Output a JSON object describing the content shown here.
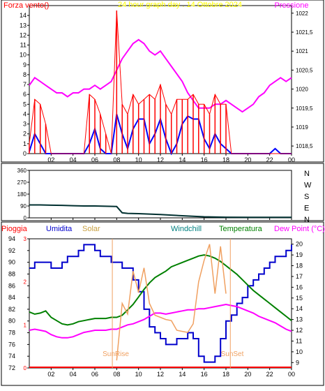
{
  "header": {
    "left_label": "Forza vento()",
    "title": "24 hour graph day . 14 Ottobre 2024",
    "right_label": "Pressione"
  },
  "colors": {
    "wind": "#ff0000",
    "pressure": "#ff00ff",
    "gust_line": "#0000ff",
    "direction": "#003030",
    "rain": "#ff0000",
    "humidity": "#0000cc",
    "solar": "#f0a060",
    "windchill": "#008080",
    "temperature": "#008000",
    "dewpoint": "#ff00ff",
    "axis": "#008080",
    "title": "#ffff00"
  },
  "x_ticks": [
    "02",
    "04",
    "06",
    "08",
    "10",
    "12",
    "14",
    "16",
    "18",
    "20",
    "22",
    "00"
  ],
  "chart_data": [
    {
      "type": "line",
      "title": "24 hour graph day . 14 Ottobre 2024",
      "y_left_label": "Forza vento()",
      "y_right_label": "Pressione",
      "ylim_left": [
        0,
        15
      ],
      "ylim_right": [
        1018.3,
        1022.2
      ],
      "y_left_ticks": [
        "0",
        "1",
        "2",
        "3",
        "4",
        "5",
        "6",
        "7",
        "8",
        "9",
        "10",
        "11",
        "12",
        "13",
        "14"
      ],
      "y_right_ticks": [
        "1018,5",
        "1019",
        "1019,5",
        "1020",
        "1020,5",
        "1021",
        "1021,5",
        "1022"
      ],
      "x": [
        0,
        0.5,
        1,
        1.5,
        2,
        2.5,
        3,
        3.5,
        4,
        4.5,
        5,
        5.5,
        6,
        6.5,
        7,
        7.5,
        8,
        8.5,
        9,
        9.5,
        10,
        10.5,
        11,
        11.5,
        12,
        12.5,
        13,
        13.5,
        14,
        14.5,
        15,
        15.5,
        16,
        16.5,
        17,
        17.5,
        18,
        18.5,
        19,
        19.5,
        20,
        20.5,
        21,
        21.5,
        22,
        22.5,
        23,
        23.5,
        24
      ],
      "series": [
        {
          "name": "Pressione",
          "axis": "right",
          "values": [
            1020.1,
            1020.3,
            1020.2,
            1020.1,
            1020.0,
            1019.9,
            1019.9,
            1019.8,
            1019.9,
            1019.9,
            1020.0,
            1020.0,
            1020.1,
            1020.0,
            1020.1,
            1020.2,
            1020.5,
            1020.8,
            1021.0,
            1021.2,
            1021.3,
            1021.2,
            1021.0,
            1020.9,
            1021.0,
            1020.8,
            1020.6,
            1020.4,
            1020.2,
            1019.9,
            1019.7,
            1019.5,
            1019.5,
            1019.5,
            1019.6,
            1019.6,
            1019.7,
            1019.6,
            1019.5,
            1019.4,
            1019.5,
            1019.6,
            1019.8,
            1019.9,
            1020.1,
            1020.2,
            1020.3,
            1020.2,
            1020.3
          ]
        },
        {
          "name": "Raffica",
          "axis": "left",
          "values": [
            0.2,
            2,
            1,
            0,
            0,
            0,
            0,
            0,
            0,
            0,
            0,
            1,
            2.5,
            0.5,
            0,
            0,
            4,
            2,
            0.5,
            2.5,
            3.5,
            3.5,
            1,
            2,
            3.5,
            1.5,
            0,
            1,
            3,
            3.8,
            3.5,
            3.5,
            1.5,
            0.5,
            2,
            1,
            0.5,
            0,
            0,
            0,
            0,
            0,
            0,
            0,
            0,
            0.5,
            0,
            0,
            0
          ]
        },
        {
          "name": "Forza vento",
          "axis": "left",
          "values": [
            1,
            5.5,
            5,
            3,
            0,
            0,
            0,
            0,
            0,
            0,
            0,
            6,
            5.5,
            4,
            2,
            0,
            14.5,
            5,
            4,
            6,
            5,
            5.5,
            6,
            5.5,
            7,
            5,
            4,
            5.5,
            5.5,
            5.5,
            6,
            5,
            5,
            4,
            6,
            5,
            5,
            0,
            0,
            0,
            0,
            0,
            0,
            0,
            0,
            0,
            0,
            0,
            0
          ]
        }
      ]
    },
    {
      "type": "line",
      "title": "",
      "y_right_ticks": [
        "N",
        "W",
        "S",
        "E",
        "N"
      ],
      "ylim": [
        0,
        360
      ],
      "y_left_ticks": [
        "360",
        "270",
        "180",
        "90",
        "0"
      ],
      "x": [
        0,
        1,
        2,
        3,
        4,
        5,
        6,
        7,
        8,
        8.5,
        9,
        10,
        12,
        14,
        16,
        18,
        20,
        22,
        24
      ],
      "series": [
        {
          "name": "Direzione",
          "values": [
            98,
            98,
            96,
            95,
            92,
            90,
            90,
            88,
            86,
            38,
            34,
            32,
            25,
            16,
            8,
            5,
            4,
            4,
            4
          ]
        }
      ]
    },
    {
      "type": "line",
      "title": "",
      "legend": [
        "Pioggia",
        "Umidita",
        "Solar",
        "Windchill",
        "Temperatura",
        "Dew Point (°C)"
      ],
      "y_left_ticks": [
        "94",
        "92",
        "90",
        "88",
        "86",
        "84",
        "82",
        "80",
        "78",
        "76",
        "74",
        "72"
      ],
      "ylim_left": [
        72,
        94
      ],
      "rain_axis_ticks": [
        "3",
        "2",
        "1",
        "0"
      ],
      "y_right_ticks": [
        "20",
        "19",
        "18",
        "17",
        "16",
        "15",
        "14",
        "13",
        "12",
        "11",
        "10",
        "9"
      ],
      "ylim_right": [
        8.5,
        20.5
      ],
      "annotations": [
        "SunRise",
        "SunSet"
      ],
      "x": [
        0,
        0.5,
        1,
        1.5,
        2,
        2.5,
        3,
        3.5,
        4,
        4.5,
        5,
        5.5,
        6,
        6.5,
        7,
        7.5,
        8,
        8.5,
        9,
        9.5,
        10,
        10.5,
        11,
        11.5,
        12,
        12.5,
        13,
        13.5,
        14,
        14.5,
        15,
        15.5,
        16,
        16.5,
        17,
        17.5,
        18,
        18.5,
        19,
        19.5,
        20,
        20.5,
        21,
        21.5,
        22,
        22.5,
        23,
        23.5,
        24
      ],
      "series": [
        {
          "name": "Umidita",
          "axis": "left",
          "values": [
            89,
            90,
            90,
            90,
            89,
            89,
            90,
            91,
            91,
            92,
            93,
            93,
            92,
            91,
            91,
            90,
            90,
            89,
            89,
            87,
            85,
            82,
            79,
            78,
            77,
            76,
            76,
            77,
            77,
            78,
            77,
            74,
            73,
            73,
            74,
            77,
            80,
            81,
            83,
            84,
            86,
            87,
            88,
            89,
            90,
            91,
            91,
            92,
            93
          ]
        },
        {
          "name": "Temperatura",
          "axis": "right",
          "values": [
            13.7,
            13.5,
            13.6,
            13.8,
            13.2,
            12.9,
            12.6,
            12.5,
            12.6,
            12.8,
            12.9,
            13.0,
            13.1,
            13.1,
            13.1,
            13.2,
            13.2,
            13.4,
            13.9,
            14.4,
            15.1,
            15.8,
            16.4,
            16.9,
            17.2,
            17.5,
            17.9,
            18.1,
            18.3,
            18.5,
            18.7,
            18.9,
            19.0,
            18.9,
            18.7,
            18.4,
            18.0,
            17.6,
            17.2,
            16.7,
            16.2,
            15.7,
            15.3,
            14.9,
            14.5,
            14.1,
            13.7,
            13.3,
            12.9
          ]
        },
        {
          "name": "Dew Point (°C)",
          "axis": "right",
          "values": [
            12.0,
            12.1,
            12.0,
            11.9,
            11.6,
            11.4,
            11.3,
            11.3,
            11.4,
            11.6,
            11.8,
            11.9,
            12.0,
            12.0,
            12.0,
            12.1,
            12.1,
            12.3,
            12.5,
            12.6,
            12.8,
            13.0,
            13.3,
            13.6,
            13.6,
            13.5,
            13.6,
            13.7,
            13.8,
            13.9,
            13.9,
            14.0,
            14.0,
            14.1,
            14.2,
            14.3,
            14.4,
            14.3,
            14.2,
            14.0,
            13.8,
            13.6,
            13.3,
            13.1,
            12.9,
            12.7,
            12.4,
            12.1,
            11.9
          ]
        },
        {
          "name": "Solar",
          "axis": "right",
          "values": [
            null,
            null,
            null,
            null,
            null,
            null,
            null,
            null,
            null,
            null,
            null,
            null,
            null,
            null,
            null,
            null,
            9.2,
            14.5,
            13.5,
            17.5,
            15.5,
            17.8,
            14.5,
            13.4,
            13.2,
            13.0,
            12.9,
            12.0,
            11.9,
            11.8,
            12.6,
            16.5,
            18.5,
            20.0,
            15.4,
            19.8,
            15.4,
            null,
            null,
            null,
            null,
            null,
            null,
            null,
            null,
            null,
            null,
            null,
            null
          ]
        },
        {
          "name": "Pioggia",
          "axis": "rain",
          "values": [
            0,
            0,
            0,
            0,
            0,
            0,
            0,
            0,
            0,
            0,
            0,
            0,
            0,
            0,
            0,
            0,
            0,
            0,
            0,
            0,
            0,
            0,
            0,
            0,
            0,
            0,
            0,
            0,
            0,
            0,
            0,
            0,
            0,
            0,
            0,
            0,
            0,
            0,
            0,
            0,
            0,
            0,
            0,
            0,
            0,
            0,
            0,
            0,
            0
          ]
        }
      ]
    }
  ]
}
